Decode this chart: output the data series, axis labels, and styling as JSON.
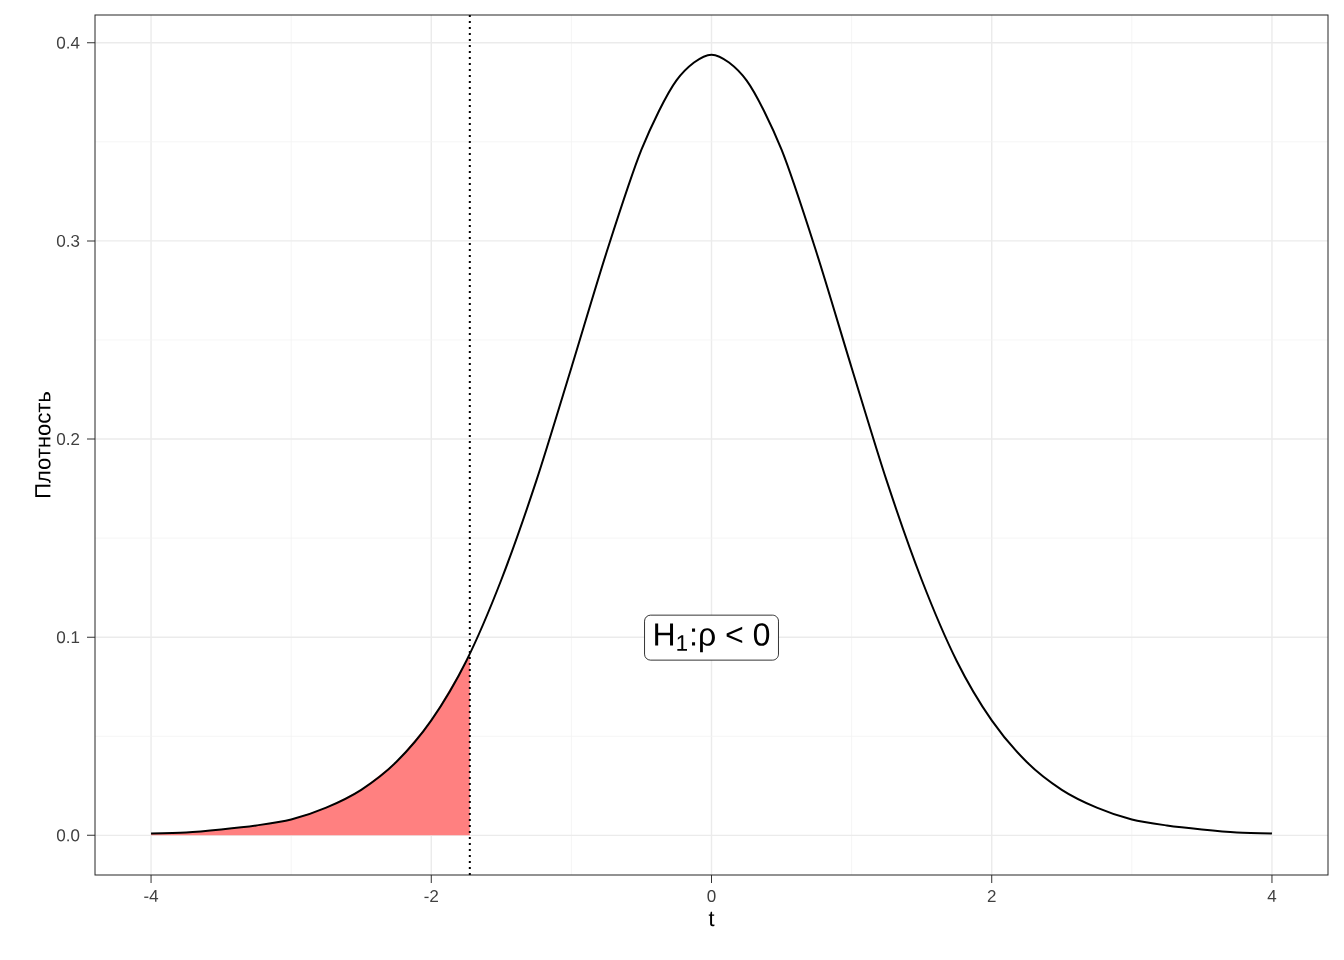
{
  "chart_data": {
    "type": "line",
    "xlabel": "t",
    "ylabel": "Плотность",
    "xlim": [
      -4.4,
      4.4
    ],
    "ylim": [
      -0.02,
      0.414
    ],
    "xticks": [
      -4,
      -2,
      0,
      2,
      4
    ],
    "yticks": [
      {
        "value": 0,
        "label": "0.0"
      },
      {
        "value": 0.1,
        "label": "0.1"
      },
      {
        "value": 0.2,
        "label": "0.2"
      },
      {
        "value": 0.3,
        "label": "0.3"
      },
      {
        "value": 0.4,
        "label": "0.4"
      }
    ],
    "grid": true,
    "line_style": "solid",
    "marker": "none",
    "series": [
      {
        "type": "area",
        "color": "#ff8080",
        "x": [
          -4,
          -3.75,
          -3.5,
          -3.25,
          -3,
          -2.75,
          -2.5,
          -2.25,
          -2,
          -1.75,
          -1.725
        ],
        "values": [
          0.001,
          0.0015,
          0.003,
          0.005,
          0.008,
          0.014,
          0.023,
          0.037,
          0.058,
          0.088,
          0.091
        ]
      },
      {
        "color": "#000000",
        "x": [
          -4,
          -3.75,
          -3.5,
          -3.25,
          -3,
          -2.75,
          -2.5,
          -2.25,
          -2,
          -1.75,
          -1.5,
          -1.25,
          -1,
          -0.75,
          -0.5,
          -0.25,
          0,
          0.25,
          0.5,
          0.75,
          1,
          1.25,
          1.5,
          1.75,
          2,
          2.25,
          2.5,
          2.75,
          3,
          3.25,
          3.5,
          3.75,
          4
        ],
        "values": [
          0.001,
          0.0015,
          0.003,
          0.005,
          0.008,
          0.014,
          0.023,
          0.037,
          0.058,
          0.088,
          0.129,
          0.179,
          0.236,
          0.294,
          0.346,
          0.381,
          0.394,
          0.381,
          0.346,
          0.294,
          0.236,
          0.179,
          0.129,
          0.088,
          0.058,
          0.037,
          0.023,
          0.014,
          0.008,
          0.005,
          0.003,
          0.0015,
          0.001
        ]
      }
    ],
    "ref_lines": [
      {
        "axis": "x",
        "value": -1.725,
        "color": "#000000",
        "line_style": "dotted"
      }
    ],
    "annotations": [
      "H$_{1}$:ρ < 0"
    ]
  }
}
